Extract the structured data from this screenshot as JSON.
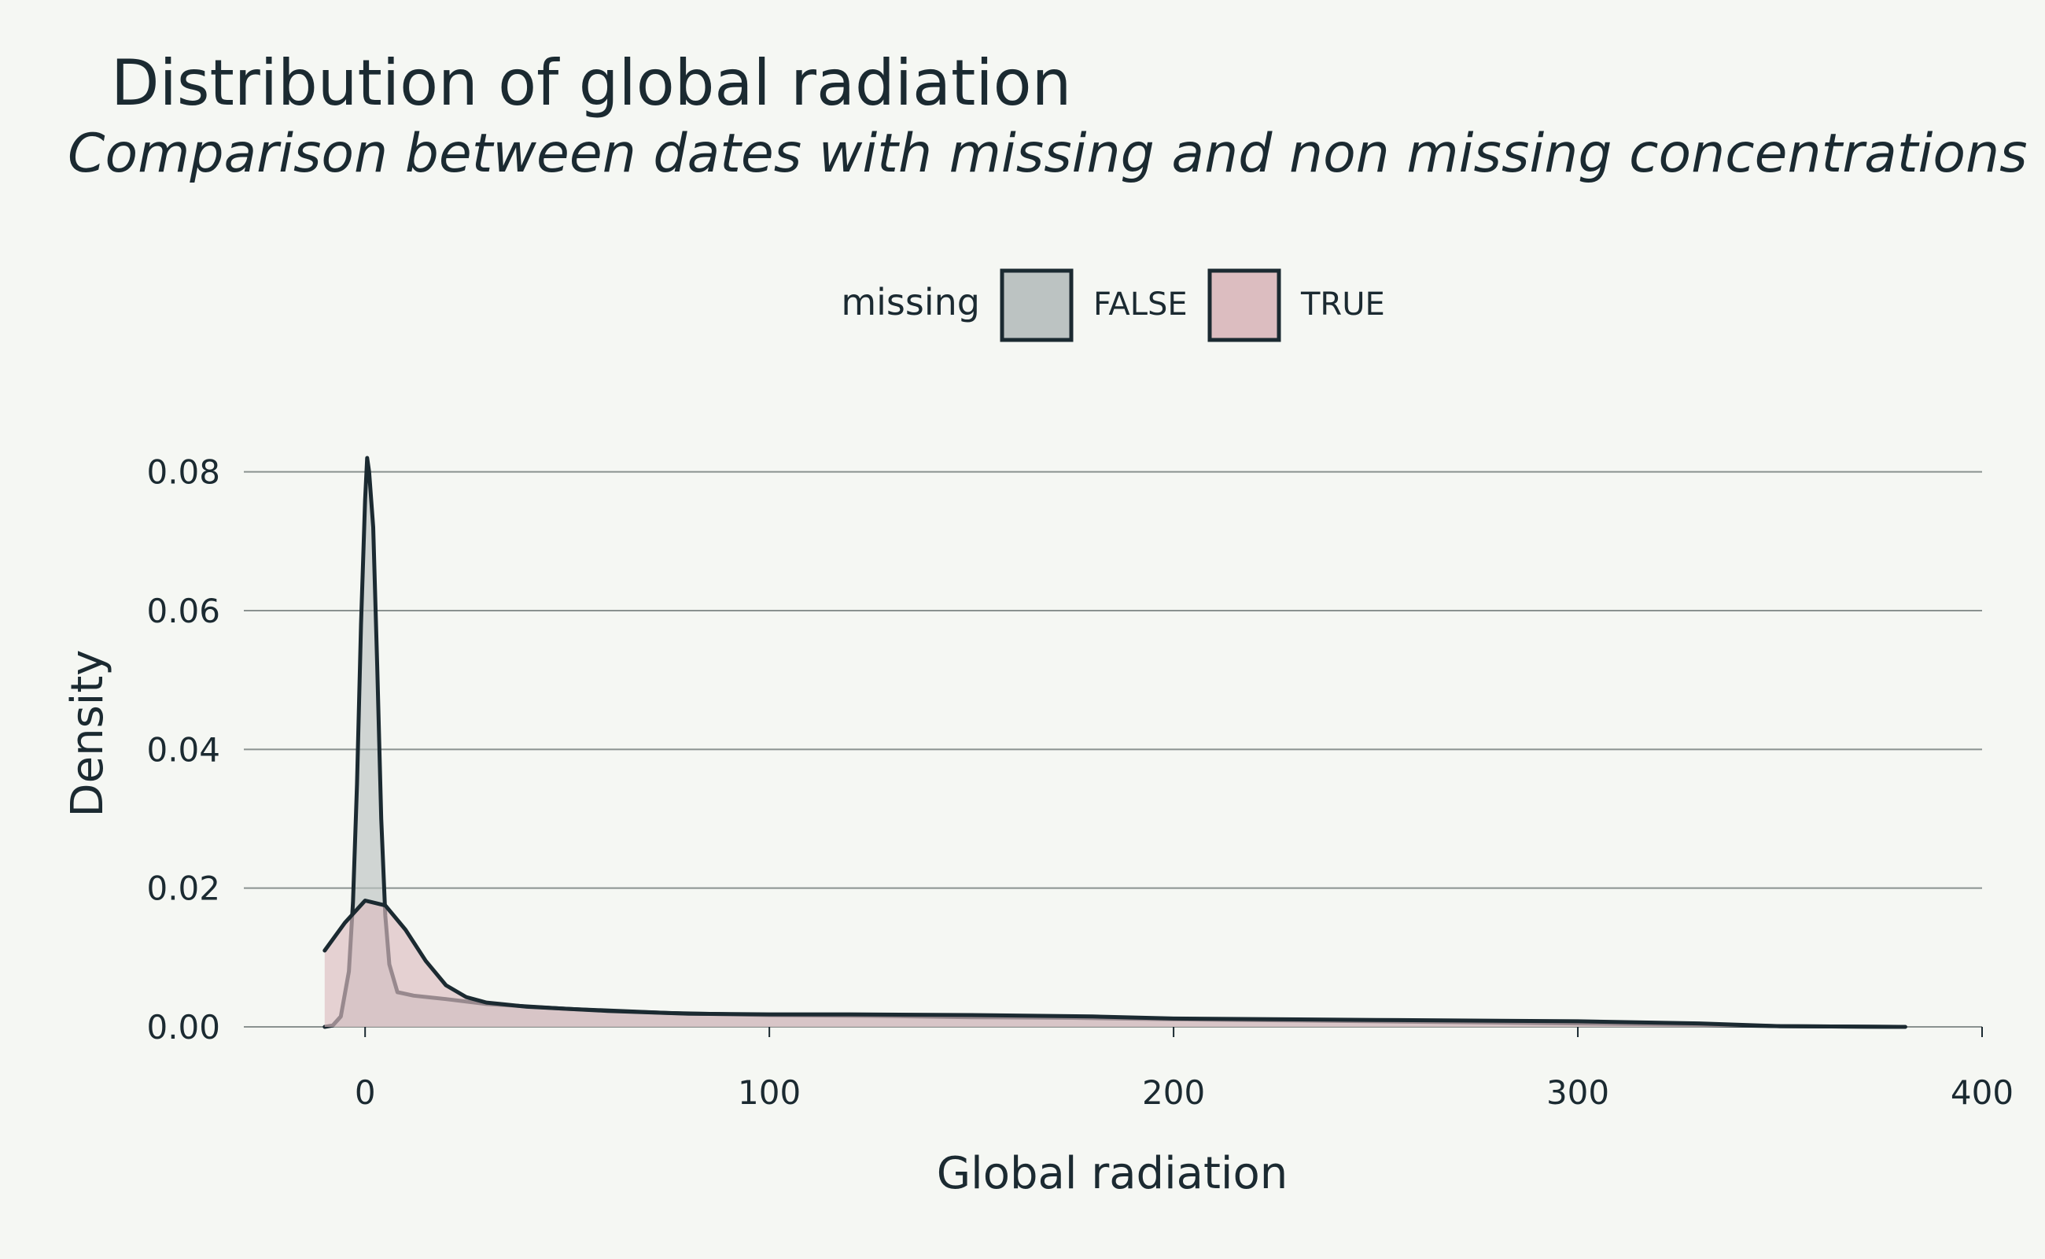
{
  "title": "Distribution of global radiation",
  "subtitle": "Comparison between dates with missing and non missing concentrations",
  "chart_data": {
    "type": "area",
    "xlabel": "Global radiation",
    "ylabel": "Density",
    "xlim": [
      -30,
      400
    ],
    "ylim": [
      0,
      0.082
    ],
    "x_ticks": [
      0,
      100,
      200,
      300,
      400
    ],
    "x_tick_labels": [
      "0",
      "100",
      "200",
      "300",
      "400"
    ],
    "y_ticks": [
      0,
      0.02,
      0.04,
      0.06,
      0.08
    ],
    "y_tick_labels": [
      "0.00",
      "0.02",
      "0.04",
      "0.06",
      "0.08"
    ],
    "grid": "horizontal",
    "legend": {
      "title": "missing",
      "position": "top",
      "entries": [
        "FALSE",
        "TRUE"
      ]
    },
    "series": [
      {
        "name": "FALSE",
        "color": "#bcc3c2",
        "points": [
          [
            -10,
            0
          ],
          [
            -8,
            0.0002
          ],
          [
            -6,
            0.0015
          ],
          [
            -4,
            0.008
          ],
          [
            -3,
            0.018
          ],
          [
            -2,
            0.035
          ],
          [
            -1,
            0.058
          ],
          [
            0,
            0.076
          ],
          [
            0.5,
            0.082
          ],
          [
            1,
            0.08
          ],
          [
            2,
            0.072
          ],
          [
            3,
            0.052
          ],
          [
            4,
            0.03
          ],
          [
            5,
            0.016
          ],
          [
            6,
            0.009
          ],
          [
            8,
            0.005
          ],
          [
            12,
            0.0045
          ],
          [
            20,
            0.004
          ],
          [
            30,
            0.0033
          ],
          [
            50,
            0.0026
          ],
          [
            75,
            0.002
          ],
          [
            100,
            0.0017
          ],
          [
            125,
            0.0016
          ],
          [
            150,
            0.0014
          ],
          [
            175,
            0.0013
          ],
          [
            200,
            0.0011
          ],
          [
            250,
            0.0008
          ],
          [
            300,
            0.0005
          ],
          [
            330,
            0.0003
          ],
          [
            350,
            0.0001
          ],
          [
            381,
            0.0
          ]
        ]
      },
      {
        "name": "TRUE",
        "color": "#dcbdc0",
        "points": [
          [
            -10,
            0.011
          ],
          [
            -5,
            0.015
          ],
          [
            0,
            0.0182
          ],
          [
            5,
            0.0175
          ],
          [
            10,
            0.014
          ],
          [
            15,
            0.0095
          ],
          [
            20,
            0.006
          ],
          [
            25,
            0.0043
          ],
          [
            30,
            0.0035
          ],
          [
            40,
            0.0029
          ],
          [
            60,
            0.0023
          ],
          [
            80,
            0.0019
          ],
          [
            100,
            0.0018
          ],
          [
            120,
            0.0018
          ],
          [
            150,
            0.0017
          ],
          [
            180,
            0.0015
          ],
          [
            200,
            0.0012
          ],
          [
            250,
            0.001
          ],
          [
            300,
            0.0008
          ],
          [
            330,
            0.0005
          ],
          [
            350,
            0.0001
          ],
          [
            381,
            0.0
          ]
        ]
      }
    ]
  }
}
